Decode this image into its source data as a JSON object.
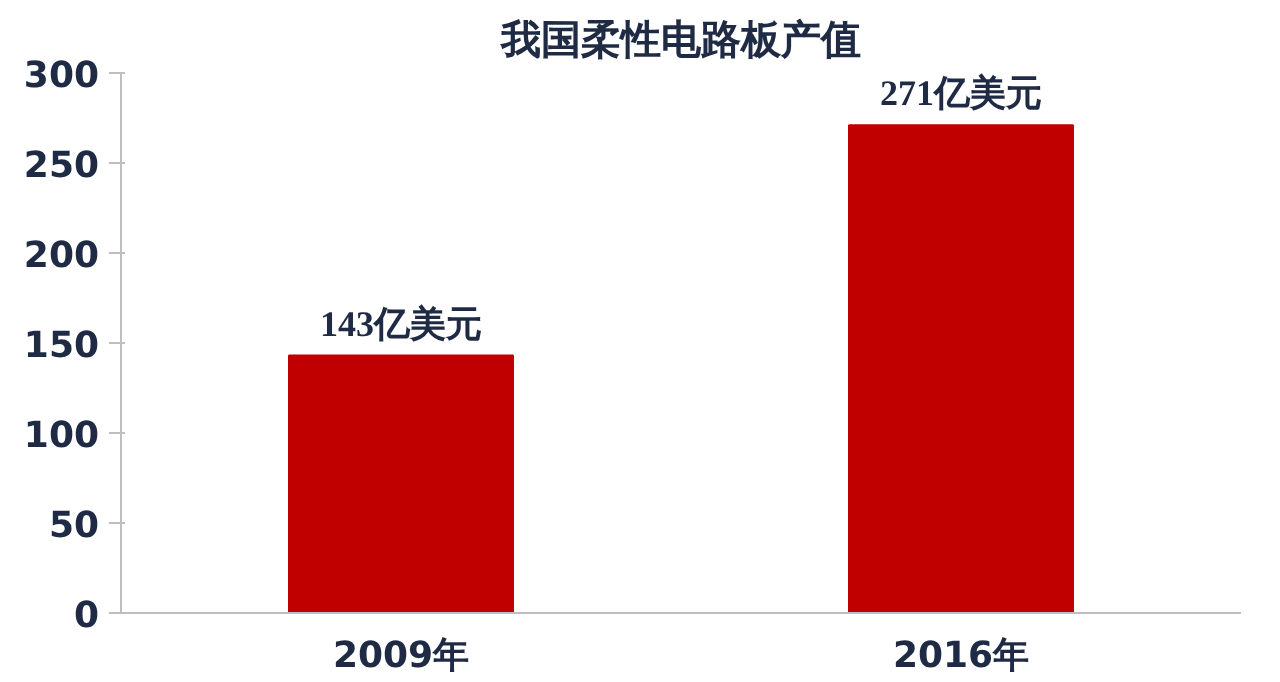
{
  "chart_data": {
    "type": "bar",
    "title": "我国柔性电路板产值",
    "categories": [
      "2009年",
      "2016年"
    ],
    "values": [
      143,
      271
    ],
    "value_labels": [
      "143亿美元",
      "271亿美元"
    ],
    "color": "#c00000",
    "ylim": [
      0,
      300
    ],
    "yticks": [
      0,
      50,
      100,
      150,
      200,
      250,
      300
    ],
    "grid": false
  }
}
